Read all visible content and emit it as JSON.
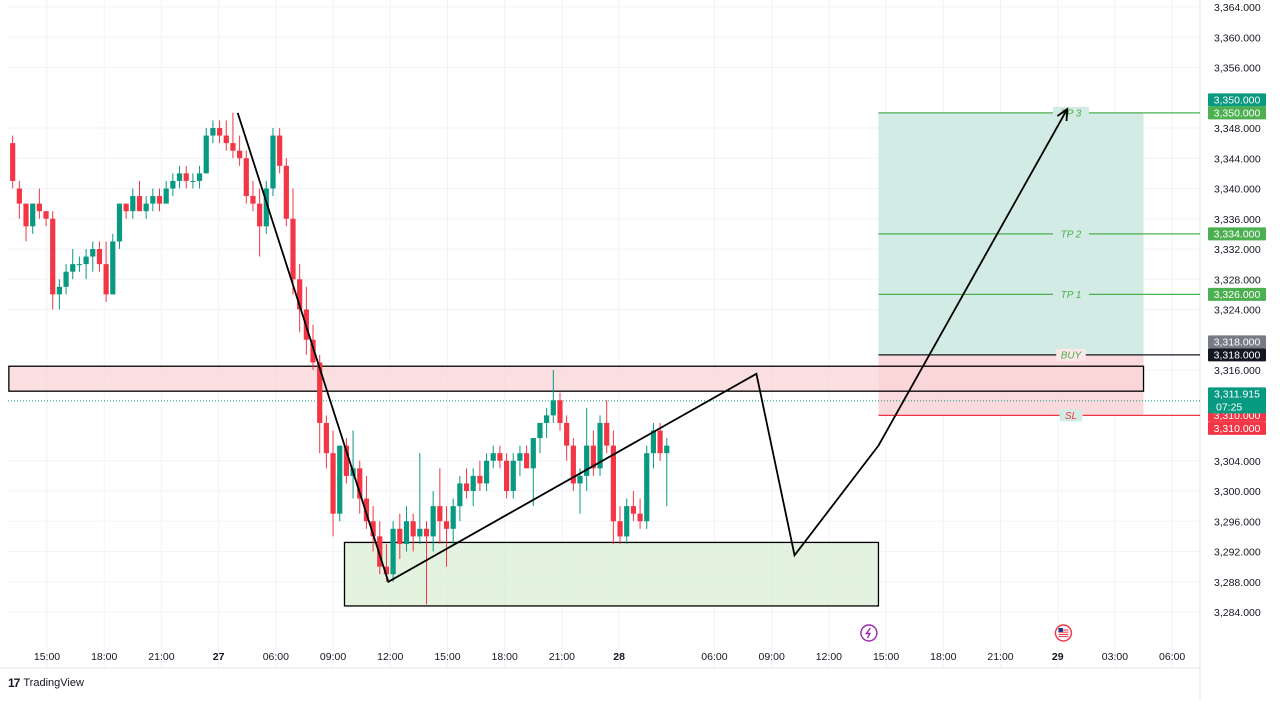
{
  "chart_data": {
    "type": "candlestick",
    "y_axis": {
      "range": [
        3282,
        3365
      ],
      "ticks": [
        "3,364.000",
        "3,360.000",
        "3,356.000",
        "3,348.000",
        "3,344.000",
        "3,340.000",
        "3,336.000",
        "3,332.000",
        "3,328.000",
        "3,324.000",
        "3,316.000",
        "3,304.000",
        "3,300.000",
        "3,296.000",
        "3,292.000",
        "3,288.000",
        "3,284.000"
      ]
    },
    "x_axis": {
      "ticks": [
        {
          "label": "15:00",
          "t": 0
        },
        {
          "label": "18:00",
          "t": 3
        },
        {
          "label": "21:00",
          "t": 6
        },
        {
          "label": "27",
          "t": 9
        },
        {
          "label": "06:00",
          "t": 12
        },
        {
          "label": "09:00",
          "t": 15
        },
        {
          "label": "12:00",
          "t": 18
        },
        {
          "label": "15:00",
          "t": 21
        },
        {
          "label": "18:00",
          "t": 24
        },
        {
          "label": "21:00",
          "t": 27
        },
        {
          "label": "28",
          "t": 30
        },
        {
          "label": "06:00",
          "t": 35
        },
        {
          "label": "09:00",
          "t": 38
        },
        {
          "label": "12:00",
          "t": 41
        },
        {
          "label": "15:00",
          "t": 44
        },
        {
          "label": "18:00",
          "t": 47
        },
        {
          "label": "21:00",
          "t": 50
        },
        {
          "label": "29",
          "t": 53
        },
        {
          "label": "03:00",
          "t": 56
        },
        {
          "label": "06:00",
          "t": 59
        }
      ]
    },
    "ohlc": [
      {
        "t": -1.8,
        "o": 3346,
        "h": 3347,
        "l": 3340,
        "c": 3341
      },
      {
        "t": -1.45,
        "o": 3340,
        "h": 3341,
        "l": 3336,
        "c": 3338
      },
      {
        "t": -1.1,
        "o": 3338,
        "h": 3338,
        "l": 3333,
        "c": 3335
      },
      {
        "t": -0.75,
        "o": 3335,
        "h": 3338,
        "l": 3334,
        "c": 3338
      },
      {
        "t": -0.4,
        "o": 3338,
        "h": 3340,
        "l": 3336,
        "c": 3337
      },
      {
        "t": -0.05,
        "o": 3337,
        "h": 3337,
        "l": 3335,
        "c": 3336
      },
      {
        "t": 0.3,
        "o": 3336,
        "h": 3337,
        "l": 3324,
        "c": 3326
      },
      {
        "t": 0.65,
        "o": 3326,
        "h": 3328,
        "l": 3324,
        "c": 3327
      },
      {
        "t": 1.0,
        "o": 3327,
        "h": 3330,
        "l": 3326,
        "c": 3329
      },
      {
        "t": 1.35,
        "o": 3329,
        "h": 3332,
        "l": 3328,
        "c": 3330
      },
      {
        "t": 1.7,
        "o": 3330,
        "h": 3331,
        "l": 3329,
        "c": 3330
      },
      {
        "t": 2.05,
        "o": 3330,
        "h": 3332,
        "l": 3328,
        "c": 3331
      },
      {
        "t": 2.4,
        "o": 3331,
        "h": 3333,
        "l": 3329,
        "c": 3332
      },
      {
        "t": 2.75,
        "o": 3332,
        "h": 3333,
        "l": 3329,
        "c": 3330
      },
      {
        "t": 3.1,
        "o": 3330,
        "h": 3333,
        "l": 3325,
        "c": 3326
      },
      {
        "t": 3.45,
        "o": 3326,
        "h": 3334,
        "l": 3326,
        "c": 3333
      },
      {
        "t": 3.8,
        "o": 3333,
        "h": 3338,
        "l": 3332,
        "c": 3338
      },
      {
        "t": 4.15,
        "o": 3338,
        "h": 3338,
        "l": 3336,
        "c": 3337
      },
      {
        "t": 4.5,
        "o": 3337,
        "h": 3340,
        "l": 3336,
        "c": 3339
      },
      {
        "t": 4.85,
        "o": 3339,
        "h": 3341,
        "l": 3337,
        "c": 3337
      },
      {
        "t": 5.2,
        "o": 3337,
        "h": 3339,
        "l": 3336,
        "c": 3338
      },
      {
        "t": 5.55,
        "o": 3338,
        "h": 3340,
        "l": 3337,
        "c": 3339
      },
      {
        "t": 5.9,
        "o": 3339,
        "h": 3340,
        "l": 3337,
        "c": 3338
      },
      {
        "t": 6.25,
        "o": 3338,
        "h": 3341,
        "l": 3338,
        "c": 3340
      },
      {
        "t": 6.6,
        "o": 3340,
        "h": 3342,
        "l": 3339,
        "c": 3341
      },
      {
        "t": 6.95,
        "o": 3341,
        "h": 3343,
        "l": 3340,
        "c": 3342
      },
      {
        "t": 7.3,
        "o": 3342,
        "h": 3343,
        "l": 3340,
        "c": 3341
      },
      {
        "t": 7.65,
        "o": 3341,
        "h": 3342,
        "l": 3340,
        "c": 3341
      },
      {
        "t": 8.0,
        "o": 3341,
        "h": 3343,
        "l": 3340,
        "c": 3342
      },
      {
        "t": 8.35,
        "o": 3342,
        "h": 3348,
        "l": 3342,
        "c": 3347
      },
      {
        "t": 8.7,
        "o": 3347,
        "h": 3349,
        "l": 3346,
        "c": 3348
      },
      {
        "t": 9.05,
        "o": 3348,
        "h": 3349,
        "l": 3346,
        "c": 3347
      },
      {
        "t": 9.4,
        "o": 3347,
        "h": 3349,
        "l": 3345,
        "c": 3346
      },
      {
        "t": 9.75,
        "o": 3346,
        "h": 3350,
        "l": 3344,
        "c": 3345
      },
      {
        "t": 10.1,
        "o": 3345,
        "h": 3347,
        "l": 3343,
        "c": 3344
      },
      {
        "t": 10.45,
        "o": 3344,
        "h": 3345,
        "l": 3338,
        "c": 3339
      },
      {
        "t": 10.8,
        "o": 3339,
        "h": 3341,
        "l": 3337,
        "c": 3338
      },
      {
        "t": 11.15,
        "o": 3338,
        "h": 3340,
        "l": 3331,
        "c": 3335
      },
      {
        "t": 11.5,
        "o": 3335,
        "h": 3341,
        "l": 3334,
        "c": 3340
      },
      {
        "t": 11.85,
        "o": 3340,
        "h": 3348,
        "l": 3339,
        "c": 3347
      },
      {
        "t": 12.2,
        "o": 3347,
        "h": 3348,
        "l": 3342,
        "c": 3343
      },
      {
        "t": 12.55,
        "o": 3343,
        "h": 3344,
        "l": 3335,
        "c": 3336
      },
      {
        "t": 12.9,
        "o": 3336,
        "h": 3340,
        "l": 3326,
        "c": 3328
      },
      {
        "t": 13.25,
        "o": 3328,
        "h": 3330,
        "l": 3321,
        "c": 3324
      },
      {
        "t": 13.6,
        "o": 3324,
        "h": 3327,
        "l": 3318,
        "c": 3320
      },
      {
        "t": 13.95,
        "o": 3320,
        "h": 3322,
        "l": 3316,
        "c": 3317
      },
      {
        "t": 14.3,
        "o": 3317,
        "h": 3318,
        "l": 3305,
        "c": 3309
      },
      {
        "t": 14.65,
        "o": 3309,
        "h": 3310,
        "l": 3303,
        "c": 3305
      },
      {
        "t": 15.0,
        "o": 3305,
        "h": 3308,
        "l": 3294,
        "c": 3297
      },
      {
        "t": 15.35,
        "o": 3297,
        "h": 3306,
        "l": 3296,
        "c": 3306
      },
      {
        "t": 15.7,
        "o": 3306,
        "h": 3307,
        "l": 3301,
        "c": 3302
      },
      {
        "t": 16.05,
        "o": 3302,
        "h": 3308,
        "l": 3299,
        "c": 3303
      },
      {
        "t": 16.4,
        "o": 3303,
        "h": 3304,
        "l": 3297,
        "c": 3299
      },
      {
        "t": 16.75,
        "o": 3299,
        "h": 3302,
        "l": 3295,
        "c": 3296
      },
      {
        "t": 17.1,
        "o": 3296,
        "h": 3298,
        "l": 3292,
        "c": 3294
      },
      {
        "t": 17.45,
        "o": 3294,
        "h": 3296,
        "l": 3289,
        "c": 3290
      },
      {
        "t": 17.8,
        "o": 3290,
        "h": 3293,
        "l": 3288,
        "c": 3289
      },
      {
        "t": 18.15,
        "o": 3289,
        "h": 3296,
        "l": 3288,
        "c": 3295
      },
      {
        "t": 18.5,
        "o": 3295,
        "h": 3297,
        "l": 3291,
        "c": 3293
      },
      {
        "t": 18.85,
        "o": 3293,
        "h": 3298,
        "l": 3292,
        "c": 3296
      },
      {
        "t": 19.2,
        "o": 3296,
        "h": 3297,
        "l": 3292,
        "c": 3294
      },
      {
        "t": 19.55,
        "o": 3294,
        "h": 3305,
        "l": 3293,
        "c": 3295
      },
      {
        "t": 19.9,
        "o": 3295,
        "h": 3296,
        "l": 3285,
        "c": 3294
      },
      {
        "t": 20.25,
        "o": 3294,
        "h": 3300,
        "l": 3292,
        "c": 3298
      },
      {
        "t": 20.6,
        "o": 3298,
        "h": 3303,
        "l": 3293,
        "c": 3296
      },
      {
        "t": 20.95,
        "o": 3296,
        "h": 3298,
        "l": 3290,
        "c": 3295
      },
      {
        "t": 21.3,
        "o": 3295,
        "h": 3299,
        "l": 3293,
        "c": 3298
      },
      {
        "t": 21.65,
        "o": 3298,
        "h": 3302,
        "l": 3296,
        "c": 3301
      },
      {
        "t": 22.0,
        "o": 3301,
        "h": 3303,
        "l": 3299,
        "c": 3300
      },
      {
        "t": 22.35,
        "o": 3300,
        "h": 3303,
        "l": 3298,
        "c": 3302
      },
      {
        "t": 22.7,
        "o": 3302,
        "h": 3304,
        "l": 3300,
        "c": 3301
      },
      {
        "t": 23.05,
        "o": 3301,
        "h": 3305,
        "l": 3300,
        "c": 3304
      },
      {
        "t": 23.4,
        "o": 3304,
        "h": 3306,
        "l": 3303,
        "c": 3305
      },
      {
        "t": 23.75,
        "o": 3305,
        "h": 3306,
        "l": 3303,
        "c": 3304
      },
      {
        "t": 24.1,
        "o": 3304,
        "h": 3305,
        "l": 3299,
        "c": 3300
      },
      {
        "t": 24.45,
        "o": 3300,
        "h": 3305,
        "l": 3299,
        "c": 3304
      },
      {
        "t": 24.8,
        "o": 3304,
        "h": 3306,
        "l": 3302,
        "c": 3305
      },
      {
        "t": 25.15,
        "o": 3305,
        "h": 3306,
        "l": 3303,
        "c": 3303
      },
      {
        "t": 25.5,
        "o": 3303,
        "h": 3307,
        "l": 3298,
        "c": 3307
      },
      {
        "t": 25.85,
        "o": 3307,
        "h": 3309,
        "l": 3305,
        "c": 3309
      },
      {
        "t": 26.2,
        "o": 3309,
        "h": 3311,
        "l": 3307,
        "c": 3310
      },
      {
        "t": 26.55,
        "o": 3310,
        "h": 3316,
        "l": 3309,
        "c": 3312
      },
      {
        "t": 26.9,
        "o": 3312,
        "h": 3313,
        "l": 3308,
        "c": 3309
      },
      {
        "t": 27.25,
        "o": 3309,
        "h": 3310,
        "l": 3304,
        "c": 3306
      },
      {
        "t": 27.6,
        "o": 3306,
        "h": 3307,
        "l": 3300,
        "c": 3301
      },
      {
        "t": 27.95,
        "o": 3301,
        "h": 3303,
        "l": 3297,
        "c": 3302
      },
      {
        "t": 28.3,
        "o": 3302,
        "h": 3311,
        "l": 3300,
        "c": 3306
      },
      {
        "t": 28.65,
        "o": 3306,
        "h": 3308,
        "l": 3302,
        "c": 3303
      },
      {
        "t": 29.0,
        "o": 3303,
        "h": 3310,
        "l": 3302,
        "c": 3309
      },
      {
        "t": 29.35,
        "o": 3309,
        "h": 3312,
        "l": 3305,
        "c": 3306
      },
      {
        "t": 29.7,
        "o": 3306,
        "h": 3308,
        "l": 3293,
        "c": 3296
      },
      {
        "t": 30.05,
        "o": 3296,
        "h": 3298,
        "l": 3293,
        "c": 3294
      },
      {
        "t": 30.4,
        "o": 3294,
        "h": 3299,
        "l": 3293,
        "c": 3298
      },
      {
        "t": 30.75,
        "o": 3298,
        "h": 3300,
        "l": 3296,
        "c": 3297
      },
      {
        "t": 31.1,
        "o": 3297,
        "h": 3299,
        "l": 3295,
        "c": 3296
      },
      {
        "t": 31.45,
        "o": 3296,
        "h": 3306,
        "l": 3295,
        "c": 3305
      },
      {
        "t": 31.8,
        "o": 3305,
        "h": 3309,
        "l": 3303,
        "c": 3308
      },
      {
        "t": 32.15,
        "o": 3308,
        "h": 3309,
        "l": 3304,
        "c": 3305
      },
      {
        "t": 32.5,
        "o": 3305,
        "h": 3307,
        "l": 3298,
        "c": 3306
      }
    ],
    "zones": [
      {
        "name": "resistance",
        "y_top": 3316.5,
        "y_bottom": 3313.2,
        "t_start": -2,
        "t_end": 57.5,
        "fill": "#f9d4d7"
      },
      {
        "name": "support",
        "y_top": 3293.2,
        "y_bottom": 3284.8,
        "t_start": 15.6,
        "t_end": 43.6,
        "fill": "#d9efd5"
      }
    ],
    "position": {
      "t_start": 43.6,
      "t_end": 57.5,
      "entry": 3318.0,
      "stop": 3310.0,
      "target": 3350.0
    },
    "levels": [
      {
        "label": "TP 3",
        "value": 3350.0,
        "tag": "3,350.000",
        "color": "#4caf50",
        "t_start": 43.6
      },
      {
        "label": "TP 2",
        "value": 3334.0,
        "tag": "3,334.000",
        "color": "#4caf50",
        "t_start": 43.6
      },
      {
        "label": "TP 1",
        "value": 3326.0,
        "tag": "3,326.000",
        "color": "#4caf50",
        "t_start": 43.6
      },
      {
        "label": "BUY",
        "value": 3318.0,
        "tag": "3,318.000",
        "color": "#131722",
        "t_start": 43.6
      },
      {
        "label": "SL",
        "value": 3310.0,
        "tag": "3,310.000",
        "color": "#f23645",
        "t_start": 43.6
      }
    ],
    "extra_tags": [
      {
        "value": 3350.0,
        "tag": "3,350.000",
        "color": "#089981",
        "offset": -1
      },
      {
        "value": 3318.0,
        "tag": "3,318.000",
        "color": "#787b86",
        "offset": -1
      },
      {
        "value": 3310.0,
        "tag": "3,310.000",
        "color": "#f23645",
        "offset": 1
      }
    ],
    "current_price": {
      "value": 3311.915,
      "label": "3,311.915",
      "timer": "07:25",
      "color": "#089981"
    },
    "zigzag": [
      {
        "t": 10.0,
        "v": 3350.0
      },
      {
        "t": 17.9,
        "v": 3288.0
      },
      {
        "t": 37.2,
        "v": 3315.5
      },
      {
        "t": 39.2,
        "v": 3291.5
      },
      {
        "t": 43.6,
        "v": 3306.0
      }
    ],
    "projection": [
      {
        "t": 43.6,
        "v": 3306.0
      },
      {
        "t": 53.5,
        "v": 3350.5
      }
    ],
    "events": [
      {
        "name": "flash-event-icon",
        "t": 43.1
      },
      {
        "name": "us-flag-event-icon",
        "t": 53.3
      }
    ],
    "colors": {
      "up": "#089981",
      "down": "#f23645",
      "grid": "#f0f3fa",
      "axis_text": "#131722",
      "long_zone": "#d2ebe4",
      "short_zone": "#f9d4d7"
    }
  },
  "branding": {
    "logo_mark": "17",
    "name": "TradingView"
  }
}
